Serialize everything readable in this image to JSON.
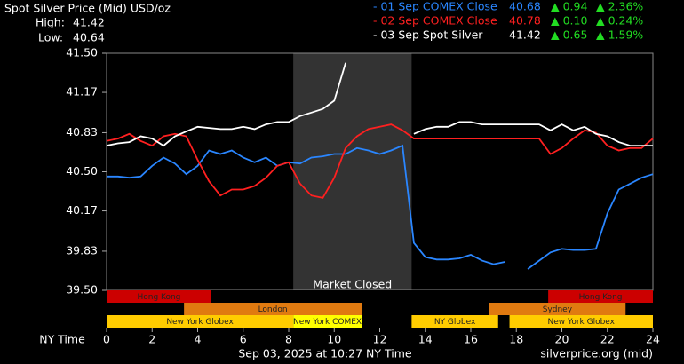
{
  "chart_data": {
    "type": "line",
    "title": "Spot Silver Price (Mid) USD/oz",
    "high_label": "High:",
    "high": "41.42",
    "low_label": "Low:",
    "low": "40.64",
    "xlabel": "NY Time",
    "footer": "Sep 03, 2025 at 10:27 NY Time",
    "source": "silverprice.org (mid)",
    "annotation": "Market Closed",
    "closed_range": [
      8.2,
      13.4
    ],
    "xlim": [
      0,
      24
    ],
    "xticks": [
      0,
      2,
      4,
      6,
      8,
      10,
      12,
      14,
      16,
      18,
      20,
      22,
      24
    ],
    "ylim": [
      39.5,
      41.5
    ],
    "yticks": [
      {
        "value": 39.5,
        "label": "39.50"
      },
      39.83,
      40.17,
      {
        "value": 40.5,
        "label": "40.50"
      },
      40.83,
      41.17,
      {
        "value": 41.5,
        "label": "41.50"
      }
    ],
    "grid": false,
    "x": [
      0,
      0.5,
      1,
      1.5,
      2,
      2.5,
      3,
      3.5,
      4,
      4.5,
      5,
      5.5,
      6,
      6.5,
      7,
      7.5,
      8,
      8.5,
      9,
      9.5,
      10,
      10.5,
      11,
      11.5,
      12,
      12.5,
      13,
      13.5,
      14,
      14.5,
      15,
      15.5,
      16,
      16.5,
      17,
      17.5,
      18,
      18.5,
      19,
      19.5,
      20,
      20.5,
      21,
      21.5,
      22,
      22.5,
      23,
      23.5,
      24
    ],
    "series": [
      {
        "name": "- 01 Sep COMEX Close",
        "color": "#2a86ff",
        "close": "40.68",
        "change": "▲ 0.94",
        "change_pct": "▲ 2.36%",
        "values": [
          40.46,
          40.46,
          40.45,
          40.46,
          40.55,
          40.62,
          40.57,
          40.48,
          40.55,
          40.68,
          40.65,
          40.68,
          40.62,
          40.58,
          40.62,
          40.55,
          40.58,
          40.57,
          40.62,
          40.63,
          40.65,
          40.65,
          40.7,
          40.68,
          40.65,
          40.68,
          40.72,
          39.9,
          39.78,
          39.76,
          39.76,
          39.77,
          39.8,
          39.75,
          39.72,
          39.74,
          null,
          39.68,
          39.75,
          39.82,
          39.85,
          39.84,
          39.84,
          39.85,
          40.15,
          40.35,
          40.4,
          40.45,
          40.48
        ]
      },
      {
        "name": "- 02 Sep COMEX Close",
        "color": "#ff2020",
        "close": "40.78",
        "change": "▲ 0.10",
        "change_pct": "▲ 0.24%",
        "values": [
          40.76,
          40.78,
          40.82,
          40.76,
          40.72,
          40.8,
          40.82,
          40.8,
          40.6,
          40.42,
          40.3,
          40.35,
          40.35,
          40.38,
          40.45,
          40.55,
          40.58,
          40.4,
          40.3,
          40.28,
          40.45,
          40.7,
          40.8,
          40.86,
          40.88,
          40.9,
          40.85,
          40.78,
          40.78,
          40.78,
          40.78,
          40.78,
          40.78,
          40.78,
          40.78,
          40.78,
          40.78,
          40.78,
          40.78,
          40.65,
          40.7,
          40.78,
          40.85,
          40.83,
          40.72,
          40.68,
          40.7,
          40.7,
          40.78
        ]
      },
      {
        "name": "- 03 Sep Spot Silver",
        "color": "#ffffff",
        "close": "41.42",
        "change": "▲ 0.65",
        "change_pct": "▲ 1.59%",
        "values": [
          40.72,
          40.74,
          40.75,
          40.8,
          40.78,
          40.72,
          40.8,
          40.84,
          40.88,
          40.87,
          40.86,
          40.86,
          40.88,
          40.86,
          40.9,
          40.92,
          40.92,
          40.97,
          41.0,
          41.03,
          41.1,
          41.42,
          null,
          null,
          null,
          null,
          null,
          40.82,
          40.86,
          40.88,
          40.88,
          40.92,
          40.92,
          40.9,
          40.9,
          40.9,
          40.9,
          40.9,
          40.9,
          40.85,
          40.9,
          40.85,
          40.88,
          40.82,
          40.8,
          40.75,
          40.72,
          40.72,
          40.72
        ]
      }
    ],
    "change_color": "#22dd22",
    "sessions": [
      [
        {
          "label": "Hong Kong",
          "start": 0,
          "end": 4.6,
          "color": "#cc0000"
        },
        {
          "label": "Hong Kong",
          "start": 19.4,
          "end": 24,
          "color": "#cc0000"
        }
      ],
      [
        {
          "label": "London",
          "start": 3.4,
          "end": 11.2,
          "color": "#e07a10"
        },
        {
          "label": "Sydney",
          "start": 16.8,
          "end": 22.8,
          "color": "#e07a10"
        }
      ],
      [
        {
          "label": "New York Globex",
          "start": 0,
          "end": 8.2,
          "color": "#ffcc00"
        },
        {
          "label": "New York COMEX",
          "start": 8.2,
          "end": 11.2,
          "color": "#ffff00"
        },
        {
          "label": "NY Globex",
          "start": 13.4,
          "end": 17.2,
          "color": "#ffcc00"
        },
        {
          "label": "New York Globex",
          "start": 17.7,
          "end": 24,
          "color": "#ffcc00"
        }
      ]
    ]
  }
}
